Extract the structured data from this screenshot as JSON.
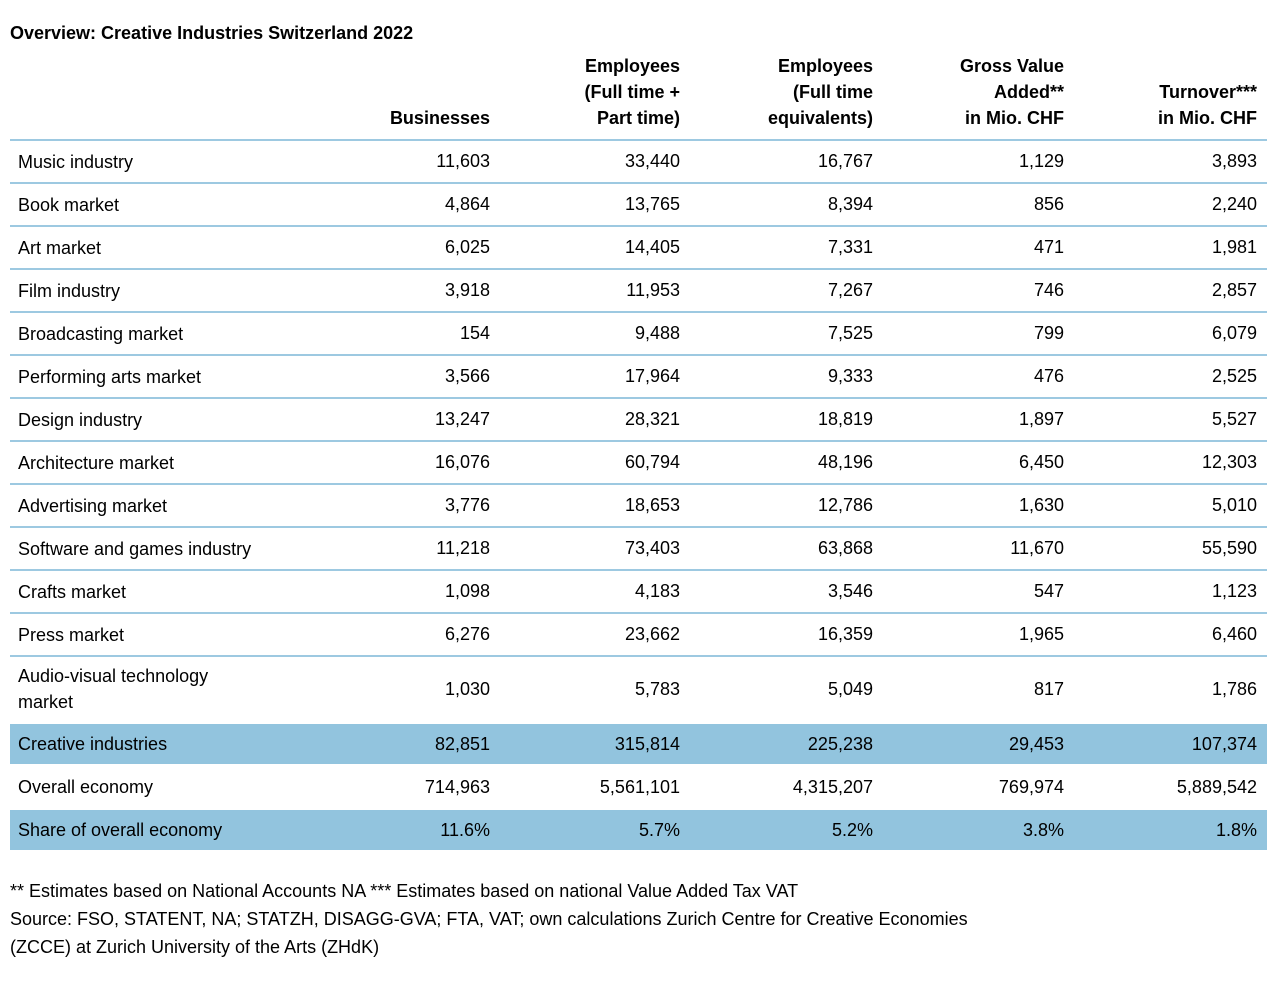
{
  "title": "Overview: Creative Industries Switzerland 2022",
  "table": {
    "columns": [
      "",
      "Businesses",
      "Employees\n(Full time +\nPart time)",
      "Employees\n(Full time\nequivalents)",
      "Gross Value\nAdded**\nin Mio. CHF",
      "Turnover***\nin Mio. CHF"
    ],
    "rows": [
      {
        "label": "Music industry",
        "values": [
          "11,603",
          "33,440",
          "16,767",
          "1,129",
          "3,893"
        ],
        "highlight": false
      },
      {
        "label": "Book market",
        "values": [
          "4,864",
          "13,765",
          "8,394",
          "856",
          "2,240"
        ],
        "highlight": false
      },
      {
        "label": "Art market",
        "values": [
          "6,025",
          "14,405",
          "7,331",
          "471",
          "1,981"
        ],
        "highlight": false
      },
      {
        "label": "Film industry",
        "values": [
          "3,918",
          "11,953",
          "7,267",
          "746",
          "2,857"
        ],
        "highlight": false
      },
      {
        "label": "Broadcasting market",
        "values": [
          "154",
          "9,488",
          "7,525",
          "799",
          "6,079"
        ],
        "highlight": false
      },
      {
        "label": "Performing arts market",
        "values": [
          "3,566",
          "17,964",
          "9,333",
          "476",
          "2,525"
        ],
        "highlight": false
      },
      {
        "label": "Design industry",
        "values": [
          "13,247",
          "28,321",
          "18,819",
          "1,897",
          "5,527"
        ],
        "highlight": false
      },
      {
        "label": "Architecture market",
        "values": [
          "16,076",
          "60,794",
          "48,196",
          "6,450",
          "12,303"
        ],
        "highlight": false
      },
      {
        "label": "Advertising market",
        "values": [
          "3,776",
          "18,653",
          "12,786",
          "1,630",
          "5,010"
        ],
        "highlight": false
      },
      {
        "label": "Software and games industry",
        "values": [
          "11,218",
          "73,403",
          "63,868",
          "11,670",
          "55,590"
        ],
        "highlight": false
      },
      {
        "label": "Crafts market",
        "values": [
          "1,098",
          "4,183",
          "3,546",
          "547",
          "1,123"
        ],
        "highlight": false
      },
      {
        "label": "Press market",
        "values": [
          "6,276",
          "23,662",
          "16,359",
          "1,965",
          "6,460"
        ],
        "highlight": false
      },
      {
        "label": "Audio-visual technology\nmarket",
        "values": [
          "1,030",
          "5,783",
          "5,049",
          "817",
          "1,786"
        ],
        "highlight": false,
        "no_divider": true
      },
      {
        "label": "Creative industries",
        "values": [
          "82,851",
          "315,814",
          "225,238",
          "29,453",
          "107,374"
        ],
        "highlight": true
      },
      {
        "label": "Overall economy",
        "values": [
          "714,963",
          "5,561,101",
          "4,315,207",
          "769,974",
          "5,889,542"
        ],
        "highlight": false,
        "no_divider": true
      },
      {
        "label": "Share of overall economy",
        "values": [
          "11.6%",
          "5.7%",
          "5.2%",
          "3.8%",
          "1.8%"
        ],
        "highlight": true
      }
    ]
  },
  "footnotes": [
    "** Estimates based on National Accounts NA *** Estimates based on national Value Added Tax VAT",
    "Source: FSO, STATENT, NA; STATZH, DISAGG-GVA; FTA, VAT; own calculations Zurich Centre for Creative Economies",
    "(ZCCE) at Zurich University of the Arts (ZHdK)"
  ],
  "colors": {
    "highlight_row": "#92c4de",
    "divider": "#9dc9e1",
    "text": "#000000",
    "background": "#ffffff"
  }
}
